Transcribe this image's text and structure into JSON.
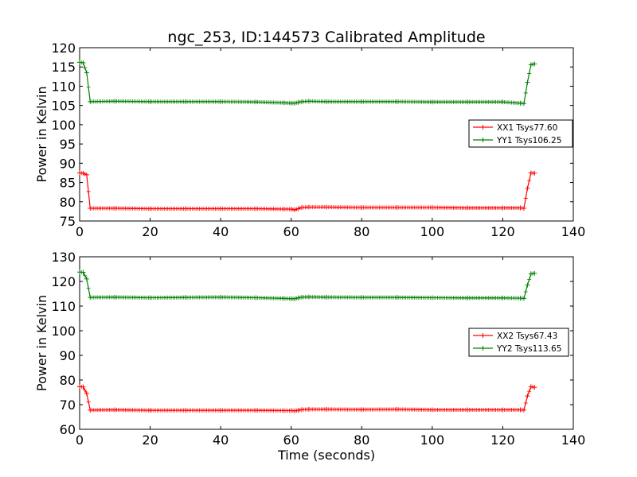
{
  "figure_title": "ngc_253, ID:144573 Calibrated Amplitude",
  "colors": {
    "xx": "#ff0000",
    "yy": "#008000",
    "axes": "#000000",
    "background": "#ffffff"
  },
  "chart_data": [
    {
      "type": "line",
      "title": "ngc_253, ID:144573 Calibrated Amplitude",
      "xlabel": "",
      "ylabel": "Power in Kelvin",
      "xlim": [
        0,
        140
      ],
      "ylim": [
        75,
        120
      ],
      "xticks": [
        0,
        20,
        40,
        60,
        80,
        100,
        120,
        140
      ],
      "yticks": [
        75,
        80,
        85,
        90,
        95,
        100,
        105,
        110,
        115,
        120
      ],
      "legend_position": "center-right",
      "series": [
        {
          "name": "XX1 Tsys77.60",
          "color": "#ff0000",
          "x": [
            0,
            1,
            2,
            3,
            10,
            20,
            30,
            40,
            50,
            58,
            60,
            61,
            62,
            63,
            65,
            70,
            80,
            90,
            100,
            110,
            120,
            125,
            126,
            127,
            128,
            129
          ],
          "y": [
            87.5,
            87.4,
            87.0,
            78.3,
            78.3,
            78.2,
            78.2,
            78.2,
            78.2,
            78.1,
            78.1,
            77.9,
            78.2,
            78.5,
            78.6,
            78.6,
            78.5,
            78.5,
            78.5,
            78.4,
            78.4,
            78.4,
            78.3,
            83.5,
            87.5,
            87.4
          ]
        },
        {
          "name": "YY1 Tsys106.25",
          "color": "#008000",
          "x": [
            0,
            1,
            2,
            3,
            10,
            20,
            30,
            40,
            50,
            58,
            60,
            61,
            62,
            63,
            65,
            70,
            80,
            90,
            100,
            110,
            120,
            125,
            126,
            127,
            128,
            129
          ],
          "y": [
            116.2,
            116.1,
            113.5,
            106.0,
            106.1,
            106.0,
            106.0,
            106.0,
            105.9,
            105.7,
            105.6,
            105.6,
            105.8,
            106.0,
            106.1,
            106.0,
            106.0,
            106.0,
            105.9,
            105.9,
            105.9,
            105.6,
            105.5,
            111.0,
            115.6,
            115.8
          ]
        }
      ]
    },
    {
      "type": "line",
      "title": "",
      "xlabel": "Time (seconds)",
      "ylabel": "Power in Kelvin",
      "xlim": [
        0,
        140
      ],
      "ylim": [
        60,
        130
      ],
      "xticks": [
        0,
        20,
        40,
        60,
        80,
        100,
        120,
        140
      ],
      "yticks": [
        60,
        70,
        80,
        90,
        100,
        110,
        120,
        130
      ],
      "legend_position": "center-right",
      "series": [
        {
          "name": "XX2 Tsys67.43",
          "color": "#ff0000",
          "x": [
            0,
            1,
            2,
            3,
            10,
            20,
            30,
            40,
            50,
            58,
            60,
            61,
            62,
            63,
            65,
            70,
            80,
            90,
            100,
            110,
            120,
            125,
            126,
            127,
            128,
            129
          ],
          "y": [
            77.3,
            77.2,
            74.5,
            67.8,
            67.9,
            67.7,
            67.7,
            67.7,
            67.7,
            67.6,
            67.6,
            67.5,
            67.7,
            68.0,
            68.1,
            68.1,
            68.0,
            68.1,
            67.9,
            67.9,
            67.9,
            67.9,
            67.8,
            73.5,
            77.3,
            77.0
          ]
        },
        {
          "name": "YY2 Tsys113.65",
          "color": "#008000",
          "x": [
            0,
            1,
            2,
            3,
            10,
            20,
            30,
            40,
            50,
            58,
            60,
            61,
            62,
            63,
            65,
            70,
            80,
            90,
            100,
            110,
            120,
            125,
            126,
            127,
            128,
            129
          ],
          "y": [
            123.8,
            123.7,
            121.0,
            113.5,
            113.6,
            113.4,
            113.5,
            113.6,
            113.4,
            113.1,
            113.0,
            113.0,
            113.3,
            113.6,
            113.7,
            113.6,
            113.5,
            113.5,
            113.4,
            113.3,
            113.3,
            113.2,
            113.1,
            118.5,
            123.1,
            123.3
          ]
        }
      ]
    }
  ]
}
